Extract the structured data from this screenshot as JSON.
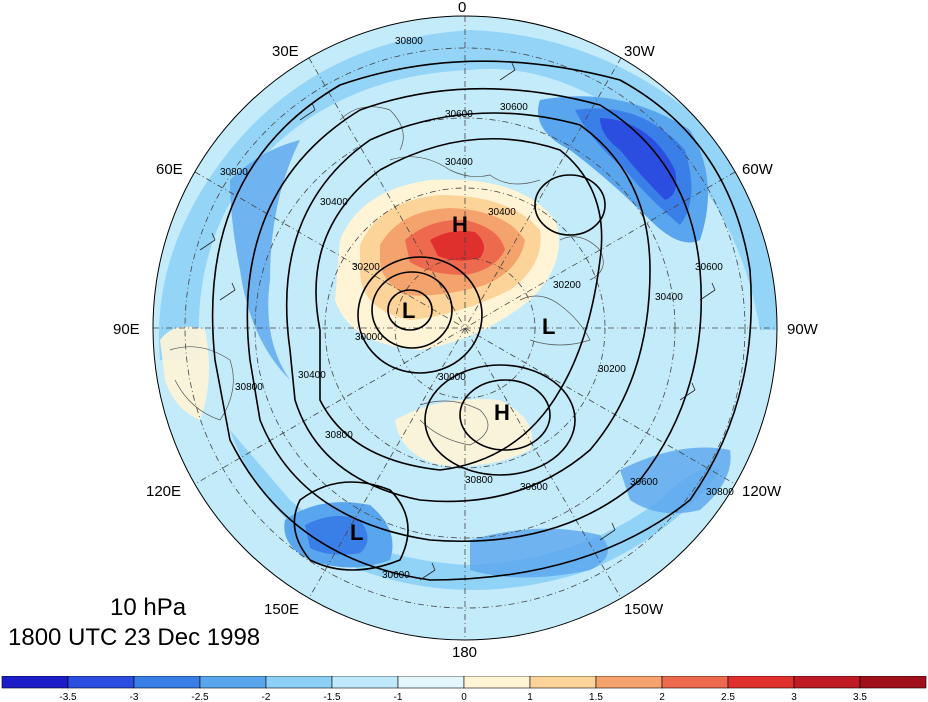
{
  "map": {
    "level": "10 hPa",
    "time": "1800 UTC 23 Dec 1998",
    "projection": "north-polar-stereographic",
    "longitude_labels": [
      "0",
      "30W",
      "60W",
      "90W",
      "120W",
      "150W",
      "180",
      "150E",
      "120E",
      "90E",
      "60E",
      "30E"
    ],
    "contour_labels": [
      "30800",
      "30600",
      "30600",
      "30400",
      "30400",
      "30400",
      "30200",
      "30200",
      "30200",
      "30000",
      "30000",
      "30400",
      "30600",
      "30800",
      "30800",
      "30800",
      "30600",
      "30600",
      "30800",
      "30800",
      "30400"
    ],
    "pressure_systems": [
      {
        "type": "H",
        "location": "Arctic, north of Siberia"
      },
      {
        "type": "H",
        "location": "Central polar region"
      },
      {
        "type": "L",
        "location": "Over Scandinavia/Barents"
      },
      {
        "type": "L",
        "location": "Over Canadian Arctic"
      },
      {
        "type": "L",
        "location": "North Pacific"
      }
    ],
    "colors": {
      "coastline": "#555555",
      "contour": "#000000",
      "grid": "#333333"
    }
  },
  "colorbar": {
    "tick_labels": [
      "-3.5",
      "-3",
      "-2.5",
      "-2",
      "-1.5",
      "-1",
      "0",
      "1",
      "1.5",
      "2",
      "2.5",
      "3",
      "3.5"
    ],
    "colors": [
      "#1c1cc8",
      "#2b4ee0",
      "#3a7ee8",
      "#5aa6ee",
      "#8cd0f6",
      "#bfe9fa",
      "#e2f6fb",
      "#fff4d6",
      "#fcd49a",
      "#f4a36c",
      "#ee6a4e",
      "#e0302e",
      "#c01a24",
      "#a0101a"
    ]
  }
}
